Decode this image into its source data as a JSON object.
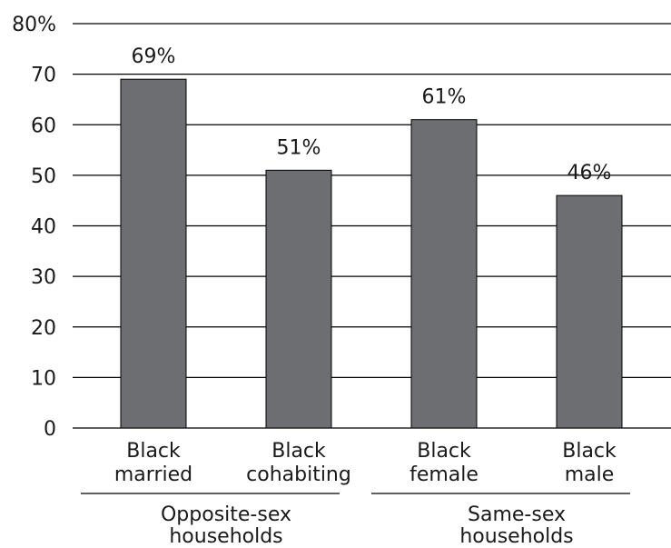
{
  "chart_data": {
    "type": "bar",
    "categories": [
      [
        "Black",
        "married"
      ],
      [
        "Black",
        "cohabiting"
      ],
      [
        "Black",
        "female"
      ],
      [
        "Black",
        "male"
      ]
    ],
    "values": [
      69,
      51,
      61,
      46
    ],
    "value_labels": [
      "69%",
      "51%",
      "61%",
      "46%"
    ],
    "groups": [
      {
        "label": [
          "Opposite-sex",
          "households"
        ],
        "categories": [
          0,
          1
        ]
      },
      {
        "label": [
          "Same-sex",
          "households"
        ],
        "categories": [
          2,
          3
        ]
      }
    ],
    "yticks": [
      {
        "value": 0,
        "label": "0"
      },
      {
        "value": 10,
        "label": "10"
      },
      {
        "value": 20,
        "label": "20"
      },
      {
        "value": 30,
        "label": "30"
      },
      {
        "value": 40,
        "label": "40"
      },
      {
        "value": 50,
        "label": "50"
      },
      {
        "value": 60,
        "label": "60"
      },
      {
        "value": 70,
        "label": "70"
      },
      {
        "value": 80,
        "label": "80%"
      }
    ],
    "ylim": [
      0,
      80
    ],
    "grid": true,
    "title": "",
    "xlabel": "",
    "ylabel": "",
    "colors": {
      "bar": "#6d6e71",
      "bar_edge": "#000000",
      "grid": "#000000"
    }
  }
}
